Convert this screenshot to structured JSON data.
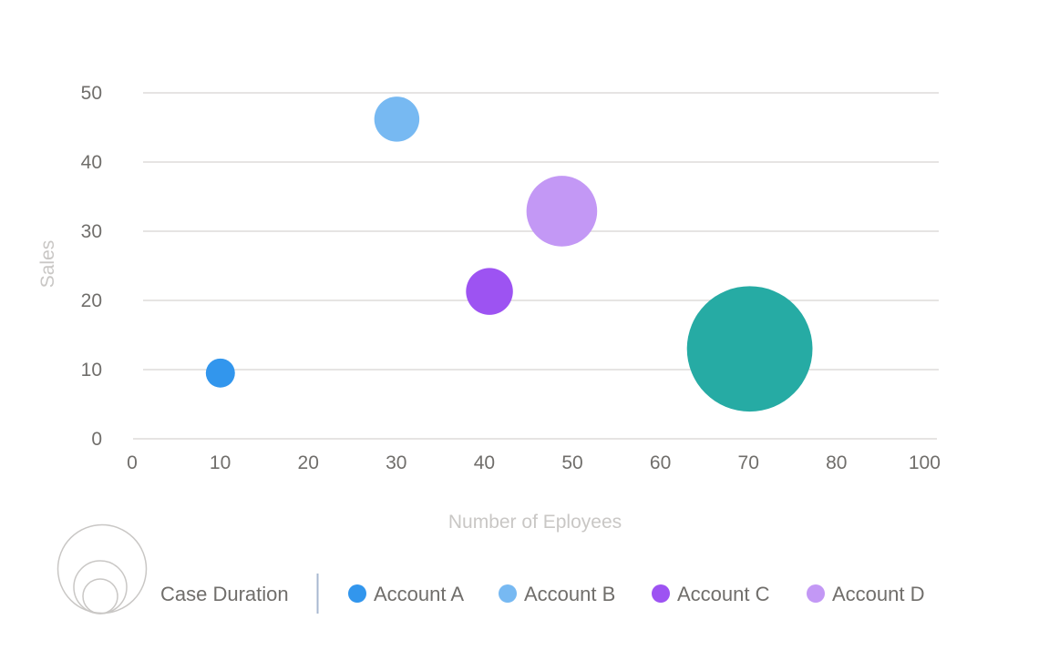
{
  "chart_data": {
    "type": "bubble",
    "title": "",
    "xlabel": "Number of Eployees",
    "ylabel": "Sales",
    "xlim": [
      0,
      100
    ],
    "ylim": [
      0,
      50
    ],
    "x_tick_labels": [
      "0",
      "10",
      "20",
      "30",
      "40",
      "50",
      "60",
      "70",
      "80",
      "100"
    ],
    "y_ticks": [
      0,
      10,
      20,
      30,
      40,
      50
    ],
    "grid": "horizontal",
    "size_legend_label": "Case Duration",
    "legend_position": "bottom",
    "series": [
      {
        "name": "Account A",
        "color": "#3296ed",
        "x": 10,
        "y": 9.5,
        "size": 10,
        "in_legend": true
      },
      {
        "name": "Account B",
        "color": "#77b9f2",
        "x": 30,
        "y": 46.2,
        "size": 24,
        "in_legend": true
      },
      {
        "name": "Account C",
        "color": "#9d53f2",
        "x": 40.5,
        "y": 21.3,
        "size": 26,
        "in_legend": true
      },
      {
        "name": "Account D",
        "color": "#c398f5",
        "x": 48.7,
        "y": 32.9,
        "size": 59,
        "in_legend": true
      },
      {
        "name": "",
        "color": "#26aba4",
        "x": 70,
        "y": 13,
        "size": 186,
        "in_legend": false
      }
    ]
  }
}
